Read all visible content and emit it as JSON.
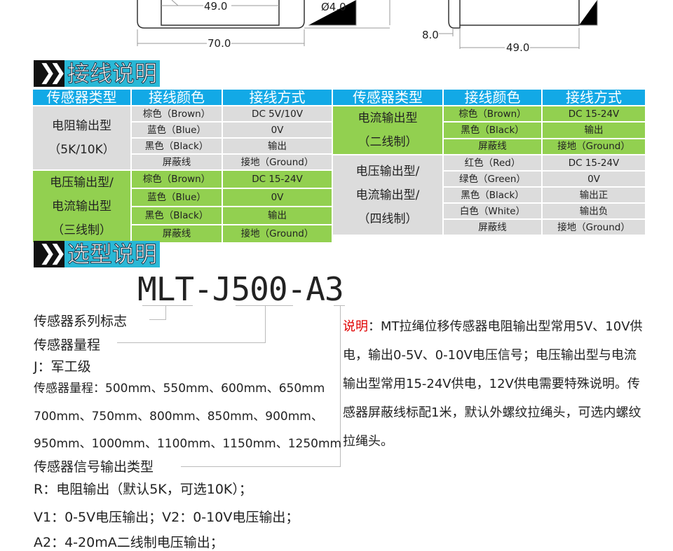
{
  "drawing": {
    "dims": [
      "49.0",
      "Ø4.0",
      "70.0",
      "8.0",
      "49.0"
    ]
  },
  "wiring": {
    "title": "接线说明",
    "headers": [
      "传感器类型",
      "接线颜色",
      "接线方式"
    ],
    "left": [
      {
        "type": [
          "电阻输出型",
          "（5K/10K）"
        ],
        "color": "gray",
        "rows": [
          [
            "棕色（Brown）",
            "DC 5V/10V"
          ],
          [
            "蓝色（Blue）",
            "0V"
          ],
          [
            "黑色（Black）",
            "输出"
          ],
          [
            "屏蔽线",
            "接地（Ground）"
          ]
        ]
      },
      {
        "type": [
          "电压输出型/",
          "电流输出型",
          "（三线制）"
        ],
        "color": "green",
        "rows": [
          [
            "棕色（Brown）",
            "DC 15-24V"
          ],
          [
            "蓝色（Blue）",
            "0V"
          ],
          [
            "黑色（Black）",
            "输出"
          ],
          [
            "屏蔽线",
            "接地（Ground）"
          ]
        ]
      }
    ],
    "right": [
      {
        "type": [
          "电流输出型",
          "（二线制）"
        ],
        "color": "green",
        "rows": [
          [
            "棕色（Brown）",
            "DC 15-24V"
          ],
          [
            "黑色（Black）",
            "输出"
          ],
          [
            "屏蔽线",
            "接地（Ground）"
          ]
        ]
      },
      {
        "type": [
          "电压输出型/",
          "电流输出型/",
          "（四线制）"
        ],
        "color": "gray",
        "rows": [
          [
            "红色（Red）",
            "DC 15-24V"
          ],
          [
            "绿色（Green）",
            "0V"
          ],
          [
            "黑色（Black）",
            "输出正"
          ],
          [
            "白色（White）",
            "输出负"
          ],
          [
            "屏蔽线",
            "接地（Ground）"
          ]
        ]
      }
    ]
  },
  "selection": {
    "title": "选型说明",
    "model": "MLT-J500-A3",
    "labels": [
      "传感器系列标志",
      "传感器量程",
      "J：军工级",
      "传感器量程：500mm、550mm、600mm、650mm",
      "700mm、750mm、800mm、850mm、900mm、",
      "950mm、1000mm、1100mm、1150mm、1250mm",
      "传感器信号输出类型",
      "R：电阻输出（默认5K，可选10K）；",
      "V1：0-5V电压输出；V2：0-10V电压输出；",
      "A2：4-20mA二线制电压输出；"
    ],
    "note_label": "说明",
    "note_text": "：MT拉绳位移传感器电阻输出型常用5V、10V供电，输出0-5V、0-10V电压信号；电压输出型与电流输出型常用15-24V供电，12V供电需要特殊说明。传感器屏蔽线标配1米，默认外螺纹拉绳头，可选内螺纹拉绳头。"
  },
  "colors": {
    "header": "#12a9e6",
    "green": "#92d050",
    "gray": "#dcdcdc",
    "accent": "#29b8d6",
    "note": "#e00000"
  }
}
